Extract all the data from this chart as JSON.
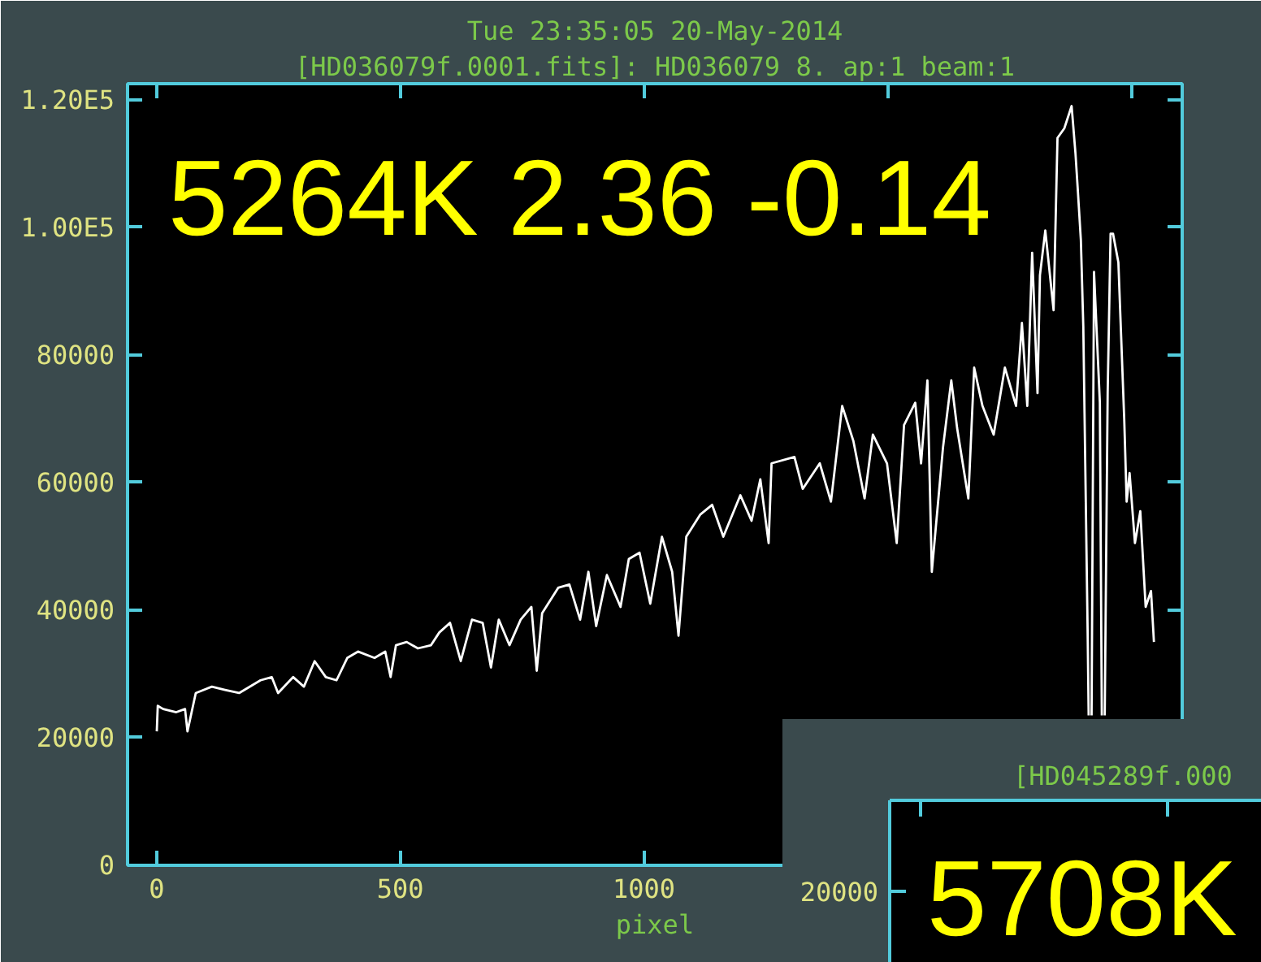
{
  "chart_data": [
    {
      "type": "line",
      "title": "Tue 23:35:05 20-May-2014",
      "subtitle": "[HD036079f.0001.fits]: HD036079 8. ap:1 beam:1",
      "xlabel": "pixel",
      "annotations": [
        "5264K 2.36  -0.14"
      ],
      "x": [
        0,
        2,
        13,
        40,
        58,
        63,
        80,
        113,
        140,
        169,
        213,
        236,
        249,
        280,
        302,
        324,
        347,
        369,
        391,
        413,
        447,
        469,
        480,
        491,
        513,
        536,
        563,
        580,
        602,
        624,
        647,
        669,
        686,
        702,
        724,
        747,
        769,
        780,
        791,
        824,
        847,
        869,
        886,
        902,
        924,
        952,
        969,
        991,
        1013,
        1037,
        1058,
        1071,
        1087,
        1116,
        1140,
        1163,
        1198,
        1221,
        1239,
        1256,
        1262,
        1309,
        1326,
        1361,
        1384,
        1407,
        1430,
        1453,
        1470,
        1499,
        1519,
        1534,
        1557,
        1569,
        1582,
        1591,
        1614,
        1631,
        1643,
        1666,
        1678,
        1695,
        1718,
        1741,
        1764,
        1776,
        1787,
        1797,
        1808,
        1813,
        1824,
        1841,
        1849,
        1863,
        1878,
        1886,
        1891,
        1897,
        1902,
        1911,
        1913,
        1916,
        1919,
        1924,
        1936,
        1940,
        1943,
        1946,
        1952,
        1958,
        1963,
        1974,
        1986,
        1991,
        1997,
        2008,
        2019,
        2030,
        2041,
        2047
      ],
      "series": [
        {
          "color": "#ffffff",
          "values": [
            21000,
            25000,
            24500,
            24000,
            24500,
            21000,
            27000,
            28000,
            27500,
            27000,
            29000,
            29500,
            27000,
            29500,
            28000,
            32000,
            29500,
            29000,
            32500,
            33500,
            32500,
            33500,
            29500,
            34500,
            35000,
            34000,
            34500,
            36500,
            38000,
            32000,
            38500,
            38000,
            31000,
            38500,
            34500,
            38500,
            40500,
            30500,
            39500,
            43500,
            44000,
            38500,
            46000,
            37500,
            45500,
            40500,
            48000,
            49000,
            41000,
            51500,
            46000,
            36000,
            51500,
            55000,
            56500,
            51500,
            58000,
            54000,
            60500,
            50500,
            63000,
            64000,
            59000,
            63000,
            57000,
            72000,
            66500,
            57500,
            67500,
            63000,
            50500,
            69000,
            72500,
            63000,
            76000,
            46000,
            65500,
            76000,
            68500,
            57500,
            78000,
            72000,
            67500,
            78000,
            72000,
            85000,
            72000,
            96000,
            74000,
            92500,
            99500,
            87000,
            114000,
            115500,
            119000,
            111500,
            105500,
            98000,
            84500,
            36000,
            23500,
            null,
            23500,
            93000,
            72500,
            23500,
            null,
            23500,
            74000,
            99000,
            99000,
            94500,
            70000,
            57000,
            61500,
            50500,
            55500,
            40500,
            43000,
            35000
          ]
        }
      ],
      "xlim": [
        -60,
        2105
      ],
      "ylim": [
        0,
        122500
      ],
      "xticks": [
        0,
        500,
        1000,
        {
          "value": 1500,
          "label": null
        },
        {
          "value": 2000,
          "label": null
        }
      ],
      "yticks": [
        0,
        20000,
        40000,
        60000,
        80000,
        {
          "value": 100000,
          "label": "1.00E5"
        },
        {
          "value": 120000,
          "label": "1.20E5"
        }
      ],
      "grid": false
    },
    {
      "type": "other",
      "subtitle": "[HD045289f.000",
      "annotations": [
        "20000",
        "5708K"
      ]
    }
  ]
}
